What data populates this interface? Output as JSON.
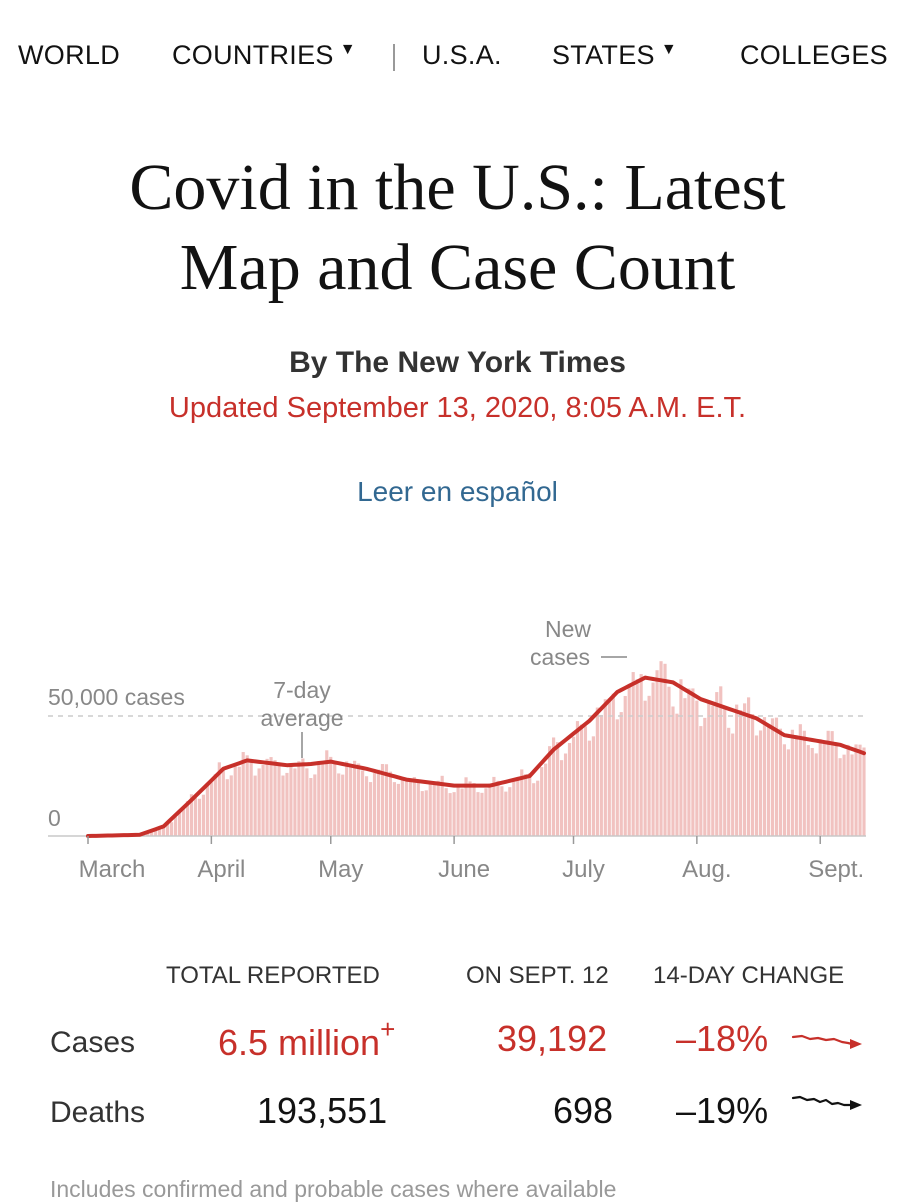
{
  "nav": {
    "items": [
      {
        "label": "WORLD"
      },
      {
        "label": "COUNTRIES"
      },
      {
        "label": "U.S.A."
      },
      {
        "label": "STATES"
      },
      {
        "label": "COLLEGES"
      }
    ]
  },
  "headline": {
    "line1": "Covid in the U.S.: Latest",
    "line2": "Map and Case Count"
  },
  "byline": "By The New York Times",
  "updated": "Updated September 13, 2020, 8:05 A.M. E.T.",
  "spanish_link": "Leer en español",
  "colors": {
    "accent_red": "#c7302a",
    "bar_pink": "#f1c2c0",
    "link_blue": "#326891"
  },
  "chart_data": {
    "type": "bar",
    "title": "",
    "y_reference": {
      "value": 50000,
      "label": "50,000 cases"
    },
    "y_zero_label": "0",
    "ylim": [
      0,
      80000
    ],
    "x_tick_labels": [
      "March",
      "April",
      "May",
      "June",
      "July",
      "Aug.",
      "Sept."
    ],
    "annotations": {
      "avg_line1": "7-day",
      "avg_line2": "average",
      "new_line1": "New",
      "new_line2": "cases"
    },
    "series": [
      {
        "name": "New cases",
        "style": "daily bars"
      },
      {
        "name": "7-day average",
        "style": "line"
      }
    ],
    "average_knots": [
      {
        "date": "2020-03-01",
        "value": 0
      },
      {
        "date": "2020-03-14",
        "value": 500
      },
      {
        "date": "2020-03-20",
        "value": 4000
      },
      {
        "date": "2020-03-27",
        "value": 15000
      },
      {
        "date": "2020-04-04",
        "value": 28000
      },
      {
        "date": "2020-04-10",
        "value": 31500
      },
      {
        "date": "2020-04-20",
        "value": 29500
      },
      {
        "date": "2020-04-26",
        "value": 30000
      },
      {
        "date": "2020-05-01",
        "value": 31000
      },
      {
        "date": "2020-05-10",
        "value": 28000
      },
      {
        "date": "2020-05-20",
        "value": 23500
      },
      {
        "date": "2020-06-01",
        "value": 21000
      },
      {
        "date": "2020-06-10",
        "value": 21000
      },
      {
        "date": "2020-06-20",
        "value": 25000
      },
      {
        "date": "2020-06-26",
        "value": 36000
      },
      {
        "date": "2020-07-05",
        "value": 48000
      },
      {
        "date": "2020-07-12",
        "value": 60000
      },
      {
        "date": "2020-07-19",
        "value": 66000
      },
      {
        "date": "2020-07-26",
        "value": 64000
      },
      {
        "date": "2020-08-02",
        "value": 57000
      },
      {
        "date": "2020-08-09",
        "value": 53000
      },
      {
        "date": "2020-08-16",
        "value": 49000
      },
      {
        "date": "2020-08-23",
        "value": 42000
      },
      {
        "date": "2020-08-30",
        "value": 40000
      },
      {
        "date": "2020-09-06",
        "value": 38000
      },
      {
        "date": "2020-09-12",
        "value": 34500
      }
    ]
  },
  "table": {
    "headers": {
      "total": "TOTAL REPORTED",
      "on_day": "ON SEPT. 12",
      "change": "14-DAY CHANGE"
    },
    "rows": {
      "cases": {
        "label": "Cases",
        "total": "6.5 million",
        "plus": "+",
        "on_day": "39,192",
        "change": "–18%"
      },
      "deaths": {
        "label": "Deaths",
        "total": "193,551",
        "on_day": "698",
        "change": "–19%"
      }
    }
  },
  "footnote": "Includes confirmed and probable cases where available"
}
